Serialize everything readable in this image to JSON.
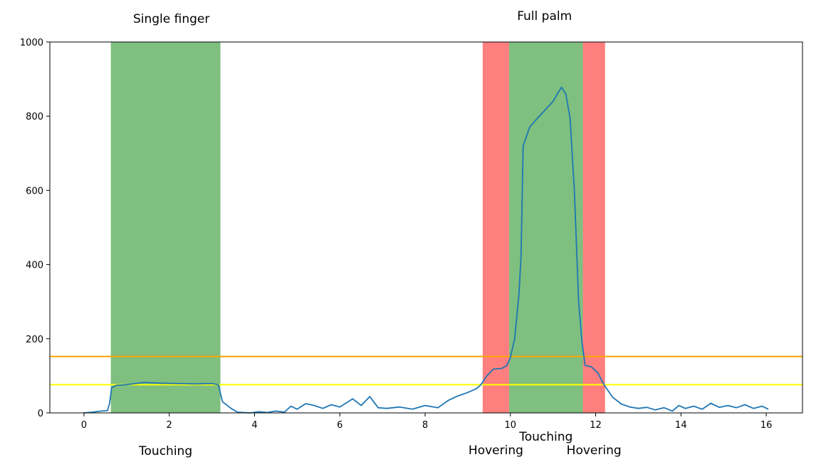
{
  "chart_data": {
    "type": "line",
    "title": "",
    "xlabel": "",
    "ylabel": "",
    "xlim": [
      -0.8,
      16.85
    ],
    "ylim": [
      0,
      1000
    ],
    "xticks": [
      "0",
      "2",
      "4",
      "6",
      "8",
      "10",
      "12",
      "14",
      "16"
    ],
    "yticks": [
      "0",
      "200",
      "400",
      "600",
      "800",
      "1000"
    ],
    "grid": false,
    "thresholds": [
      {
        "y": 152,
        "color": "#ffa500"
      },
      {
        "y": 76,
        "color": "#ffff00"
      }
    ],
    "regions": [
      {
        "x0": 0.63,
        "x1": 3.2,
        "color": "#008000",
        "label": "Touching"
      },
      {
        "x0": 9.35,
        "x1": 9.97,
        "color": "#ff0000",
        "label": "Hovering"
      },
      {
        "x0": 9.97,
        "x1": 11.7,
        "color": "#008000",
        "label": "Touching"
      },
      {
        "x0": 11.7,
        "x1": 12.22,
        "color": "#ff0000",
        "label": "Hovering"
      }
    ],
    "annotations": [
      {
        "text": "Single finger",
        "x": 2.05
      },
      {
        "text": "Full palm",
        "x": 10.8
      }
    ],
    "series": [
      {
        "color": "#1f77b4",
        "points": [
          [
            0,
            0
          ],
          [
            0.2,
            2
          ],
          [
            0.4,
            5
          ],
          [
            0.55,
            6
          ],
          [
            0.6,
            25
          ],
          [
            0.65,
            68
          ],
          [
            0.75,
            74
          ],
          [
            1.0,
            76
          ],
          [
            1.4,
            82
          ],
          [
            1.8,
            80
          ],
          [
            2.2,
            79
          ],
          [
            2.6,
            78
          ],
          [
            3.0,
            79
          ],
          [
            3.15,
            76
          ],
          [
            3.25,
            30
          ],
          [
            3.45,
            12
          ],
          [
            3.6,
            2
          ],
          [
            3.9,
            0
          ],
          [
            4.1,
            3
          ],
          [
            4.3,
            1
          ],
          [
            4.5,
            5
          ],
          [
            4.7,
            2
          ],
          [
            4.85,
            18
          ],
          [
            5.0,
            10
          ],
          [
            5.2,
            25
          ],
          [
            5.4,
            20
          ],
          [
            5.6,
            12
          ],
          [
            5.8,
            22
          ],
          [
            6.0,
            16
          ],
          [
            6.3,
            38
          ],
          [
            6.5,
            20
          ],
          [
            6.7,
            44
          ],
          [
            6.9,
            14
          ],
          [
            7.1,
            12
          ],
          [
            7.4,
            16
          ],
          [
            7.7,
            10
          ],
          [
            8.0,
            20
          ],
          [
            8.3,
            14
          ],
          [
            8.55,
            34
          ],
          [
            8.75,
            45
          ],
          [
            9.0,
            55
          ],
          [
            9.2,
            65
          ],
          [
            9.3,
            75
          ],
          [
            9.45,
            100
          ],
          [
            9.6,
            118
          ],
          [
            9.8,
            120
          ],
          [
            9.92,
            128
          ],
          [
            10.0,
            150
          ],
          [
            10.1,
            200
          ],
          [
            10.2,
            320
          ],
          [
            10.25,
            420
          ],
          [
            10.3,
            720
          ],
          [
            10.45,
            770
          ],
          [
            10.6,
            790
          ],
          [
            10.8,
            815
          ],
          [
            11.0,
            840
          ],
          [
            11.1,
            860
          ],
          [
            11.2,
            878
          ],
          [
            11.3,
            860
          ],
          [
            11.4,
            795
          ],
          [
            11.5,
            600
          ],
          [
            11.6,
            300
          ],
          [
            11.68,
            190
          ],
          [
            11.75,
            128
          ],
          [
            11.9,
            124
          ],
          [
            12.05,
            108
          ],
          [
            12.2,
            75
          ],
          [
            12.4,
            42
          ],
          [
            12.6,
            24
          ],
          [
            12.8,
            16
          ],
          [
            13.0,
            12
          ],
          [
            13.2,
            15
          ],
          [
            13.4,
            8
          ],
          [
            13.6,
            14
          ],
          [
            13.8,
            5
          ],
          [
            13.95,
            20
          ],
          [
            14.1,
            12
          ],
          [
            14.3,
            18
          ],
          [
            14.5,
            10
          ],
          [
            14.7,
            26
          ],
          [
            14.9,
            15
          ],
          [
            15.1,
            20
          ],
          [
            15.3,
            14
          ],
          [
            15.5,
            22
          ],
          [
            15.7,
            12
          ],
          [
            15.9,
            18
          ],
          [
            16.05,
            10
          ]
        ]
      }
    ]
  }
}
